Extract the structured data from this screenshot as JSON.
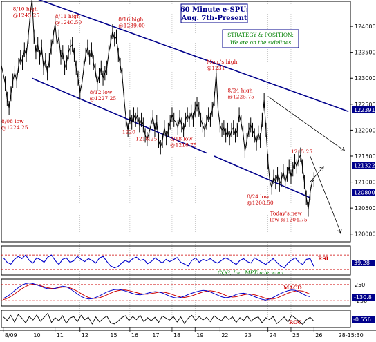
{
  "chart_data": {
    "type": "line",
    "title": "60 Minute e-SPU:",
    "subtitle": "Aug. 7th-Present",
    "strategy_heading": "STRATEGY & POSITION:",
    "strategy_text": "We are on the sidelines",
    "credit": "CQG, Inc. MPTrader.com",
    "colors": {
      "price": "#000000",
      "channel": "#00008b",
      "annotation": "#cc0000",
      "strategy": "#008000",
      "title": "#00008b",
      "rsi": "#0000cc",
      "macd_fast": "#0000cc",
      "macd_slow": "#cc0000",
      "roc": "#000000",
      "dashed": "#cc0000",
      "tag_bg": "#00008b",
      "tag_text": "#ffffff"
    },
    "y_axis": {
      "ticks": [
        1240.0,
        1235.0,
        1230.0,
        1225.0,
        1220.0,
        1215.0,
        1210.0,
        1205.0,
        1200.0
      ],
      "tick_labels": [
        "124000",
        "123500",
        "123000",
        "122500",
        "122000",
        "121500",
        "121000",
        "120500",
        "120000"
      ],
      "ylim": [
        1198.5,
        1244.8
      ]
    },
    "x_axis": {
      "tick_labels": [
        "8/09",
        "10",
        "11",
        "12",
        "15",
        "16",
        "17",
        "18",
        "19",
        "22",
        "23",
        "24",
        "25",
        "26",
        "28-15:30"
      ],
      "tick_x": [
        0,
        15,
        27,
        40,
        55,
        66,
        77,
        88,
        100,
        113,
        125,
        138,
        150,
        162,
        174
      ],
      "xlim": [
        -1,
        181
      ]
    },
    "series": [
      {
        "values": [
          [
            -1,
            1232.5
          ],
          [
            1,
            1229.0
          ],
          [
            2,
            1226.0
          ],
          [
            3,
            1224.25
          ],
          [
            4,
            1227.0
          ],
          [
            5,
            1229.5
          ],
          [
            6,
            1231.0
          ],
          [
            7,
            1229.5
          ],
          [
            8,
            1232.5
          ],
          [
            9,
            1234.0
          ],
          [
            10,
            1233.0
          ],
          [
            11,
            1235.5
          ],
          [
            12,
            1234.5
          ],
          [
            13,
            1238.0
          ],
          [
            14,
            1242.0
          ],
          [
            15,
            1245.25
          ],
          [
            16,
            1238.0
          ],
          [
            17,
            1235.0
          ],
          [
            18,
            1236.5
          ],
          [
            19,
            1234.0
          ],
          [
            20,
            1236.0
          ],
          [
            21,
            1232.0
          ],
          [
            22,
            1233.5
          ],
          [
            23,
            1231.0
          ],
          [
            24,
            1233.5
          ],
          [
            25,
            1236.0
          ],
          [
            26,
            1238.0
          ],
          [
            27,
            1240.5
          ],
          [
            28,
            1236.5
          ],
          [
            29,
            1238.0
          ],
          [
            30,
            1234.0
          ],
          [
            31,
            1235.0
          ],
          [
            32,
            1232.0
          ],
          [
            33,
            1233.0
          ],
          [
            34,
            1235.0
          ],
          [
            35,
            1236.0
          ],
          [
            36,
            1236.5
          ],
          [
            37,
            1234.5
          ],
          [
            38,
            1232.0
          ],
          [
            39,
            1230.0
          ],
          [
            40,
            1227.25
          ],
          [
            41,
            1229.0
          ],
          [
            42,
            1232.0
          ],
          [
            43,
            1234.5
          ],
          [
            44,
            1236.0
          ],
          [
            45,
            1234.0
          ],
          [
            46,
            1235.5
          ],
          [
            47,
            1233.0
          ],
          [
            48,
            1231.5
          ],
          [
            49,
            1229.0
          ],
          [
            50,
            1230.5
          ],
          [
            51,
            1232.0
          ],
          [
            52,
            1230.0
          ],
          [
            53,
            1231.0
          ],
          [
            54,
            1232.0
          ],
          [
            55,
            1235.0
          ],
          [
            56,
            1237.0
          ],
          [
            57,
            1239.0
          ],
          [
            58,
            1237.5
          ],
          [
            59,
            1238.0
          ],
          [
            60,
            1234.5
          ],
          [
            61,
            1232.5
          ],
          [
            62,
            1230.5
          ],
          [
            63,
            1226.0
          ],
          [
            64,
            1222.0
          ],
          [
            65,
            1220.0
          ],
          [
            66,
            1222.5
          ],
          [
            67,
            1221.5
          ],
          [
            68,
            1223.0
          ],
          [
            69,
            1222.0
          ],
          [
            70,
            1223.0
          ],
          [
            71,
            1221.0
          ],
          [
            72,
            1222.0
          ],
          [
            73,
            1221.0
          ],
          [
            74,
            1219.0
          ],
          [
            75,
            1218.25
          ],
          [
            76,
            1219.5
          ],
          [
            77,
            1221.0
          ],
          [
            78,
            1222.5
          ],
          [
            79,
            1220.0
          ],
          [
            80,
            1221.5
          ],
          [
            81,
            1218.0
          ],
          [
            82,
            1216.75
          ],
          [
            83,
            1218.0
          ],
          [
            84,
            1220.5
          ],
          [
            85,
            1218.5
          ],
          [
            86,
            1220.0
          ],
          [
            87,
            1221.5
          ],
          [
            88,
            1223.0
          ],
          [
            89,
            1222.0
          ],
          [
            90,
            1221.5
          ],
          [
            91,
            1220.5
          ],
          [
            92,
            1222.5
          ],
          [
            93,
            1221.0
          ],
          [
            94,
            1220.0
          ],
          [
            95,
            1222.0
          ],
          [
            96,
            1223.0
          ],
          [
            97,
            1222.0
          ],
          [
            98,
            1223.5
          ],
          [
            99,
            1222.0
          ],
          [
            100,
            1224.0
          ],
          [
            101,
            1225.0
          ],
          [
            102,
            1224.0
          ],
          [
            103,
            1222.0
          ],
          [
            104,
            1221.0
          ],
          [
            105,
            1220.0
          ],
          [
            106,
            1221.5
          ],
          [
            107,
            1223.0
          ],
          [
            108,
            1222.0
          ],
          [
            109,
            1224.0
          ],
          [
            110,
            1226.0
          ],
          [
            111,
            1231.0
          ],
          [
            112,
            1224.0
          ],
          [
            113,
            1221.0
          ],
          [
            114,
            1220.0
          ],
          [
            115,
            1220.5
          ],
          [
            116,
            1219.0
          ],
          [
            117,
            1220.0
          ],
          [
            118,
            1218.5
          ],
          [
            119,
            1220.0
          ],
          [
            120,
            1220.5
          ],
          [
            121,
            1219.0
          ],
          [
            122,
            1220.0
          ],
          [
            123,
            1223.0
          ],
          [
            124,
            1221.5
          ],
          [
            125,
            1219.5
          ],
          [
            126,
            1216.0
          ],
          [
            127,
            1218.0
          ],
          [
            128,
            1220.0
          ],
          [
            129,
            1221.0
          ],
          [
            130,
            1220.0
          ],
          [
            131,
            1219.0
          ],
          [
            132,
            1217.5
          ],
          [
            133,
            1219.5
          ],
          [
            134,
            1218.0
          ],
          [
            135,
            1222.0
          ],
          [
            136,
            1225.75
          ],
          [
            137,
            1220.0
          ],
          [
            138,
            1214.0
          ],
          [
            139,
            1210.0
          ],
          [
            140,
            1209.0
          ],
          [
            141,
            1211.0
          ],
          [
            142,
            1210.0
          ],
          [
            143,
            1211.5
          ],
          [
            144,
            1209.5
          ],
          [
            145,
            1210.5
          ],
          [
            146,
            1212.0
          ],
          [
            147,
            1210.0
          ],
          [
            148,
            1211.5
          ],
          [
            149,
            1213.0
          ],
          [
            150,
            1211.0
          ],
          [
            151,
            1212.5
          ],
          [
            152,
            1214.0
          ],
          [
            153,
            1213.0
          ],
          [
            154,
            1214.5
          ],
          [
            155,
            1215.25
          ],
          [
            156,
            1213.0
          ],
          [
            157,
            1210.0
          ],
          [
            158,
            1207.0
          ],
          [
            159,
            1204.75
          ],
          [
            160,
            1208.0
          ],
          [
            161,
            1210.0
          ],
          [
            162,
            1210.5
          ]
        ]
      }
    ],
    "channel_lines": [
      {
        "name": "upper channel",
        "points": [
          [
            15,
            1245.6
          ],
          [
            180,
            1223.6
          ]
        ]
      },
      {
        "name": "lower channel",
        "points": [
          [
            15,
            1230.0
          ],
          [
            106,
            1215.6
          ]
        ]
      },
      {
        "name": "lower channel",
        "points": [
          [
            110,
            1215.0
          ],
          [
            160,
            1207.0
          ]
        ]
      }
    ],
    "projection_lines": [
      {
        "points": [
          [
            138,
            1226.5
          ],
          [
            178,
            1216.0
          ]
        ]
      },
      {
        "points": [
          [
            160,
            1215.0
          ],
          [
            172,
            1204.0
          ],
          [
            176,
            1200.2
          ]
        ]
      },
      {
        "points": [
          [
            160,
            1210.0
          ],
          [
            167,
            1213.0
          ]
        ]
      }
    ],
    "annotations": [
      {
        "text": "8/10 high",
        "line2": "@1245.25",
        "x": 5,
        "y": 1243.0
      },
      {
        "text": "8/11 high",
        "line2": "@1240.50",
        "x": 27,
        "y": 1241.6
      },
      {
        "text": "8/16 high",
        "line2": "@1239.00",
        "x": 60,
        "y": 1241.0
      },
      {
        "text": "Mon.'s high",
        "line2": "@1231",
        "x": 106,
        "y": 1232.8
      },
      {
        "text": "8/24 high",
        "line2": "@1225.75",
        "x": 117,
        "y": 1227.3
      },
      {
        "text": "8/08 low",
        "line2": "@1224.25",
        "x": -1,
        "y": 1221.4
      },
      {
        "text": "8/12 low",
        "line2": "@1227.25",
        "x": 45,
        "y": 1227.0
      },
      {
        "text": "1220",
        "line2": "",
        "x": 62,
        "y": 1219.3
      },
      {
        "text": "1218.25",
        "line2": "",
        "x": 69,
        "y": 1218.0
      },
      {
        "text": "8/18 low",
        "line2": "@1216.75",
        "x": 87,
        "y": 1218.0
      },
      {
        "text": "1215.25",
        "line2": "",
        "x": 150,
        "y": 1215.5
      },
      {
        "text": "8/24 low",
        "line2": "@1208.50",
        "x": 127,
        "y": 1206.9
      },
      {
        "text": "Today's new",
        "line2": "low @1204.75",
        "x": 139,
        "y": 1203.6
      }
    ],
    "price_tags": [
      {
        "label": "122391",
        "y": 1223.91
      },
      {
        "label": "121322",
        "y": 1213.22
      },
      {
        "label": "120800",
        "y": 1208.0
      }
    ],
    "rsi": {
      "label": "RSI",
      "value_label": "39.28",
      "levels": [
        70,
        30
      ],
      "ylim": [
        15,
        95
      ],
      "values": [
        62,
        50,
        45,
        58,
        66,
        60,
        70,
        55,
        48,
        62,
        57,
        50,
        64,
        70,
        55,
        44,
        58,
        62,
        50,
        54,
        66,
        58,
        52,
        60,
        55,
        48,
        62,
        66,
        52,
        40,
        35,
        38,
        48,
        55,
        50,
        60,
        64,
        55,
        58,
        46,
        52,
        62,
        55,
        48,
        58,
        52,
        57,
        63,
        50,
        45,
        40,
        55,
        62,
        50,
        58,
        54,
        60,
        52,
        48,
        55,
        62,
        58,
        50,
        44,
        55,
        60,
        52,
        48,
        62,
        56,
        50,
        44,
        52,
        60,
        50,
        40,
        35,
        48,
        56,
        62,
        50,
        44,
        58,
        60,
        39
      ]
    },
    "macd": {
      "label": "MACD",
      "value_label": "-130.8",
      "ticks": [
        250,
        -250
      ],
      "tick_labels": [
        "250",
        "-250"
      ],
      "levels": [
        250,
        -250
      ],
      "ylim": [
        -420,
        420
      ],
      "fast": [
        -180,
        -120,
        -40,
        60,
        150,
        230,
        280,
        300,
        280,
        240,
        200,
        150,
        120,
        110,
        130,
        170,
        200,
        180,
        120,
        40,
        -40,
        -120,
        -170,
        -200,
        -190,
        -150,
        -100,
        -40,
        20,
        60,
        90,
        100,
        80,
        50,
        10,
        -30,
        -60,
        -70,
        -50,
        -20,
        10,
        30,
        20,
        -10,
        -60,
        -110,
        -150,
        -170,
        -150,
        -110,
        -60,
        -20,
        20,
        50,
        70,
        60,
        20,
        -30,
        -80,
        -130,
        -160,
        -150,
        -110,
        -60,
        -30,
        -20,
        -40,
        -80,
        -130,
        -170,
        -210,
        -230,
        -200,
        -150,
        -90,
        -30,
        20,
        60,
        80,
        70,
        20,
        -40,
        -100,
        -130
      ],
      "slow": [
        -220,
        -180,
        -120,
        -40,
        40,
        120,
        190,
        240,
        260,
        250,
        220,
        180,
        150,
        130,
        130,
        150,
        170,
        170,
        150,
        100,
        40,
        -30,
        -100,
        -150,
        -180,
        -180,
        -160,
        -120,
        -70,
        -20,
        30,
        60,
        80,
        80,
        60,
        30,
        0,
        -30,
        -50,
        -50,
        -30,
        -10,
        10,
        15,
        0,
        -30,
        -70,
        -110,
        -140,
        -150,
        -130,
        -100,
        -60,
        -20,
        20,
        45,
        55,
        40,
        10,
        -30,
        -80,
        -120,
        -140,
        -130,
        -100,
        -70,
        -50,
        -50,
        -70,
        -100,
        -140,
        -180,
        -200,
        -200,
        -170,
        -120,
        -70,
        -20,
        20,
        50,
        60,
        45,
        0,
        -50
      ]
    },
    "roc": {
      "label": "ROC",
      "value_label": "-0.556",
      "ylim": [
        -2.2,
        2.2
      ],
      "values": [
        0.5,
        -0.4,
        0.9,
        -0.8,
        1.1,
        0.2,
        -1.0,
        0.6,
        -0.3,
        1.0,
        -0.6,
        0.4,
        1.4,
        -0.9,
        0.3,
        -0.5,
        0.8,
        -1.1,
        0.2,
        0.6,
        -0.7,
        0.9,
        -0.2,
        0.4,
        -1.3,
        0.5,
        -0.8,
        0.1,
        0.7,
        -1.0,
        -1.3,
        -0.6,
        0.3,
        0.8,
        -0.4,
        0.6,
        -0.2,
        0.9,
        -0.7,
        0.3,
        -0.5,
        0.4,
        -0.9,
        0.7,
        0.2,
        -0.3,
        0.6,
        -0.8,
        0.5,
        -1.2,
        0.2,
        0.9,
        -0.4,
        0.6,
        -0.3,
        0.4,
        -0.7,
        0.8,
        0.1,
        -0.5,
        0.7,
        -0.2,
        0.5,
        -0.9,
        0.3,
        -0.4,
        0.8,
        -0.6,
        0.2,
        0.5,
        -1.0,
        0.3,
        -0.2,
        0.6,
        -1.2,
        -0.4,
        0.5,
        -0.8,
        0.9,
        0.2,
        -0.6,
        -1.4,
        -0.2,
        0.4,
        -0.56
      ]
    }
  }
}
